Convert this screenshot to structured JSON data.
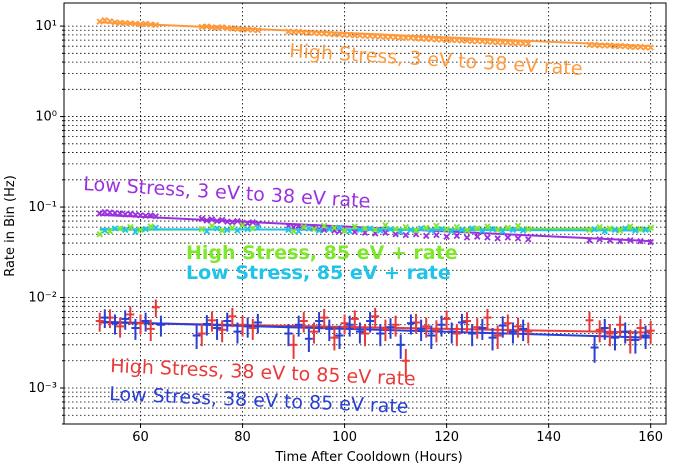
{
  "chart_data": {
    "type": "scatter",
    "xlabel": "Time After Cooldown (Hours)",
    "ylabel": "Rate in Bin (Hz)",
    "xlim": [
      45,
      163
    ],
    "ylim": [
      0.0004,
      18
    ],
    "yscale": "log",
    "grid": true,
    "x_ticks": [
      60,
      80,
      100,
      120,
      140,
      160
    ],
    "x_tick_labels": [
      "60",
      "80",
      "100",
      "120",
      "140",
      "160"
    ],
    "y_ticks": [
      0.001,
      0.01,
      0.1,
      1,
      10
    ],
    "y_tick_labels": [
      "10⁻³",
      "10⁻²",
      "10⁻¹",
      "10⁰",
      "10¹"
    ],
    "series": [
      {
        "name": "High Stress, 3 eV to 38 eV rate",
        "color": "#ff9a3c",
        "label_bold": false,
        "marker": "x",
        "fit": [
          [
            52,
            11.0
          ],
          [
            160,
            6.0
          ]
        ],
        "x": [
          52,
          53,
          54,
          55,
          56,
          57,
          58,
          59,
          60,
          61,
          62,
          63,
          72,
          73,
          74,
          75,
          76,
          77,
          78,
          79,
          80,
          81,
          82,
          83,
          89,
          90,
          91,
          92,
          93,
          94,
          95,
          96,
          97,
          98,
          99,
          100,
          101,
          102,
          103,
          104,
          105,
          106,
          107,
          108,
          109,
          110,
          111,
          112,
          113,
          114,
          115,
          116,
          117,
          118,
          119,
          120,
          121,
          122,
          123,
          124,
          125,
          126,
          127,
          128,
          129,
          130,
          131,
          132,
          133,
          134,
          135,
          136,
          148,
          149,
          150,
          151,
          152,
          153,
          154,
          155,
          156,
          157,
          158,
          159,
          160
        ],
        "y": [
          11.2,
          11.6,
          11.3,
          11.0,
          10.9,
          10.8,
          10.7,
          10.6,
          10.5,
          10.6,
          10.4,
          10.3,
          9.8,
          9.9,
          9.7,
          9.6,
          9.7,
          9.5,
          9.4,
          9.3,
          9.2,
          9.2,
          9.1,
          9.0,
          8.7,
          8.6,
          8.7,
          8.5,
          8.4,
          8.4,
          8.3,
          8.3,
          8.2,
          8.1,
          8.1,
          8.0,
          8.0,
          7.9,
          7.9,
          7.8,
          7.8,
          7.7,
          7.7,
          7.6,
          7.6,
          7.5,
          7.5,
          7.4,
          7.4,
          7.3,
          7.3,
          7.2,
          7.2,
          7.1,
          7.1,
          7.0,
          7.0,
          7.0,
          6.9,
          6.9,
          6.8,
          6.8,
          6.8,
          6.7,
          6.7,
          6.6,
          6.6,
          6.6,
          6.5,
          6.5,
          6.4,
          6.4,
          6.2,
          6.2,
          6.1,
          6.1,
          6.1,
          6.0,
          6.0,
          6.0,
          5.9,
          5.9,
          5.9,
          5.8,
          5.8
        ]
      },
      {
        "name": "Low Stress, 3 eV to 38 eV rate",
        "color": "#9b30e0",
        "label_bold": false,
        "marker": "x",
        "fit": [
          [
            52,
            0.082
          ],
          [
            160,
            0.042
          ]
        ],
        "x": [
          52,
          53,
          54,
          55,
          56,
          57,
          58,
          59,
          60,
          61,
          62,
          63,
          72,
          73,
          74,
          75,
          76,
          77,
          78,
          79,
          80,
          81,
          82,
          83,
          89,
          90,
          91,
          92,
          93,
          94,
          95,
          96,
          97,
          98,
          99,
          100,
          102,
          104,
          106,
          108,
          110,
          112,
          114,
          116,
          118,
          120,
          122,
          124,
          126,
          128,
          130,
          132,
          134,
          136,
          148,
          150,
          152,
          154,
          156,
          158,
          160
        ],
        "y": [
          0.085,
          0.088,
          0.087,
          0.086,
          0.085,
          0.083,
          0.084,
          0.082,
          0.081,
          0.08,
          0.081,
          0.079,
          0.074,
          0.071,
          0.073,
          0.07,
          0.072,
          0.069,
          0.068,
          0.07,
          0.067,
          0.066,
          0.068,
          0.065,
          0.062,
          0.06,
          0.061,
          0.059,
          0.058,
          0.06,
          0.057,
          0.056,
          0.058,
          0.055,
          0.054,
          0.055,
          0.053,
          0.052,
          0.051,
          0.052,
          0.05,
          0.049,
          0.05,
          0.048,
          0.049,
          0.047,
          0.048,
          0.046,
          0.047,
          0.046,
          0.045,
          0.046,
          0.045,
          0.044,
          0.043,
          0.044,
          0.043,
          0.042,
          0.043,
          0.042,
          0.041
        ]
      },
      {
        "name": "High Stress, 85 eV + rate",
        "color": "#7de82a",
        "label_bold": true,
        "marker": "x",
        "fit": [
          [
            52,
            0.056
          ],
          [
            160,
            0.058
          ]
        ],
        "x": [
          52,
          54,
          56,
          58,
          60,
          62,
          72,
          74,
          76,
          78,
          80,
          82,
          90,
          92,
          94,
          96,
          98,
          100,
          102,
          104,
          106,
          108,
          110,
          112,
          114,
          116,
          118,
          120,
          122,
          124,
          126,
          128,
          130,
          132,
          134,
          136,
          148,
          150,
          152,
          154,
          156,
          158,
          160
        ],
        "y": [
          0.05,
          0.054,
          0.058,
          0.06,
          0.056,
          0.061,
          0.057,
          0.062,
          0.055,
          0.059,
          0.063,
          0.058,
          0.054,
          0.06,
          0.057,
          0.062,
          0.059,
          0.055,
          0.061,
          0.058,
          0.056,
          0.063,
          0.057,
          0.06,
          0.055,
          0.059,
          0.062,
          0.057,
          0.06,
          0.055,
          0.058,
          0.061,
          0.056,
          0.059,
          0.062,
          0.057,
          0.056,
          0.06,
          0.058,
          0.055,
          0.061,
          0.057,
          0.059
        ]
      },
      {
        "name": "Low Stress, 85 eV + rate",
        "color": "#1fc4e8",
        "label_bold": true,
        "marker": "x",
        "fit": [
          [
            52,
            0.057
          ],
          [
            160,
            0.055
          ]
        ],
        "x": [
          53,
          55,
          57,
          59,
          61,
          63,
          73,
          75,
          77,
          79,
          81,
          83,
          89,
          91,
          93,
          95,
          97,
          99,
          101,
          103,
          105,
          107,
          109,
          111,
          113,
          115,
          117,
          119,
          121,
          123,
          125,
          127,
          129,
          131,
          133,
          135,
          149,
          151,
          153,
          155,
          157,
          159
        ],
        "y": [
          0.055,
          0.058,
          0.056,
          0.053,
          0.057,
          0.059,
          0.054,
          0.058,
          0.056,
          0.055,
          0.057,
          0.059,
          0.056,
          0.054,
          0.058,
          0.055,
          0.057,
          0.059,
          0.054,
          0.056,
          0.058,
          0.055,
          0.057,
          0.053,
          0.056,
          0.058,
          0.055,
          0.057,
          0.054,
          0.056,
          0.058,
          0.055,
          0.057,
          0.054,
          0.056,
          0.055,
          0.057,
          0.054,
          0.056,
          0.058,
          0.055,
          0.056
        ]
      },
      {
        "name": "High Stress, 38 eV to 85 eV rate",
        "color": "#e83a3a",
        "label_bold": false,
        "marker": "errorbar",
        "fit": [
          [
            52,
            0.0053
          ],
          [
            160,
            0.0041
          ]
        ],
        "x": [
          52,
          54,
          56,
          58,
          60,
          62,
          63,
          72,
          74,
          76,
          78,
          80,
          82,
          90,
          92,
          94,
          96,
          98,
          100,
          102,
          104,
          106,
          108,
          110,
          112,
          114,
          116,
          118,
          120,
          122,
          124,
          126,
          128,
          130,
          132,
          134,
          136,
          148,
          150,
          152,
          154,
          156,
          158,
          160
        ],
        "y": [
          0.0055,
          0.006,
          0.0048,
          0.0065,
          0.0052,
          0.0045,
          0.0078,
          0.004,
          0.0056,
          0.0044,
          0.0062,
          0.005,
          0.0046,
          0.003,
          0.0055,
          0.0042,
          0.006,
          0.0036,
          0.0052,
          0.0058,
          0.004,
          0.0062,
          0.0045,
          0.005,
          0.002,
          0.0053,
          0.0048,
          0.0044,
          0.0058,
          0.004,
          0.0055,
          0.0047,
          0.006,
          0.0038,
          0.0052,
          0.0048,
          0.0042,
          0.0056,
          0.0044,
          0.004,
          0.005,
          0.0034,
          0.0046,
          0.0043
        ],
        "err": [
          0.0013,
          0.0014,
          0.0012,
          0.0015,
          0.0013,
          0.0012,
          0.0017,
          0.0011,
          0.0014,
          0.0012,
          0.0015,
          0.0013,
          0.0012,
          0.0009,
          0.0014,
          0.0011,
          0.0015,
          0.001,
          0.0013,
          0.0014,
          0.0011,
          0.0015,
          0.0012,
          0.0013,
          0.0007,
          0.0013,
          0.0012,
          0.0012,
          0.0014,
          0.0011,
          0.0014,
          0.0012,
          0.0015,
          0.0011,
          0.0013,
          0.0012,
          0.0011,
          0.0014,
          0.0012,
          0.0011,
          0.0013,
          0.001,
          0.0012,
          0.0012
        ]
      },
      {
        "name": "Low Stress, 38 eV to 85 eV rate",
        "color": "#2a3fd6",
        "label_bold": false,
        "marker": "errorbar",
        "fit": [
          [
            52,
            0.0054
          ],
          [
            160,
            0.0036
          ]
        ],
        "x": [
          53,
          55,
          57,
          59,
          61,
          64,
          71,
          73,
          75,
          77,
          79,
          81,
          83,
          89,
          91,
          93,
          95,
          97,
          99,
          101,
          103,
          105,
          107,
          109,
          111,
          113,
          115,
          117,
          119,
          121,
          123,
          125,
          127,
          129,
          131,
          133,
          135,
          149,
          151,
          153,
          155,
          157,
          159
        ],
        "y": [
          0.006,
          0.0052,
          0.0058,
          0.0046,
          0.0055,
          0.005,
          0.0038,
          0.0051,
          0.0046,
          0.0055,
          0.0042,
          0.0048,
          0.0053,
          0.004,
          0.005,
          0.0035,
          0.0055,
          0.0045,
          0.0038,
          0.005,
          0.0042,
          0.0055,
          0.004,
          0.0047,
          0.003,
          0.0052,
          0.0045,
          0.0038,
          0.005,
          0.0042,
          0.0053,
          0.004,
          0.0046,
          0.0036,
          0.0049,
          0.0042,
          0.0045,
          0.0028,
          0.0046,
          0.0036,
          0.0042,
          0.0034,
          0.0038
        ],
        "err": [
          0.0014,
          0.0013,
          0.0014,
          0.0012,
          0.0013,
          0.0013,
          0.0011,
          0.0013,
          0.0012,
          0.0013,
          0.0011,
          0.0012,
          0.0013,
          0.0011,
          0.0013,
          0.001,
          0.0014,
          0.0012,
          0.0011,
          0.0013,
          0.0011,
          0.0014,
          0.0011,
          0.0012,
          0.0009,
          0.0013,
          0.0012,
          0.0011,
          0.0013,
          0.0011,
          0.0013,
          0.0011,
          0.0012,
          0.001,
          0.0013,
          0.0011,
          0.0012,
          0.0009,
          0.0012,
          0.001,
          0.0011,
          0.001,
          0.0011
        ]
      }
    ]
  }
}
